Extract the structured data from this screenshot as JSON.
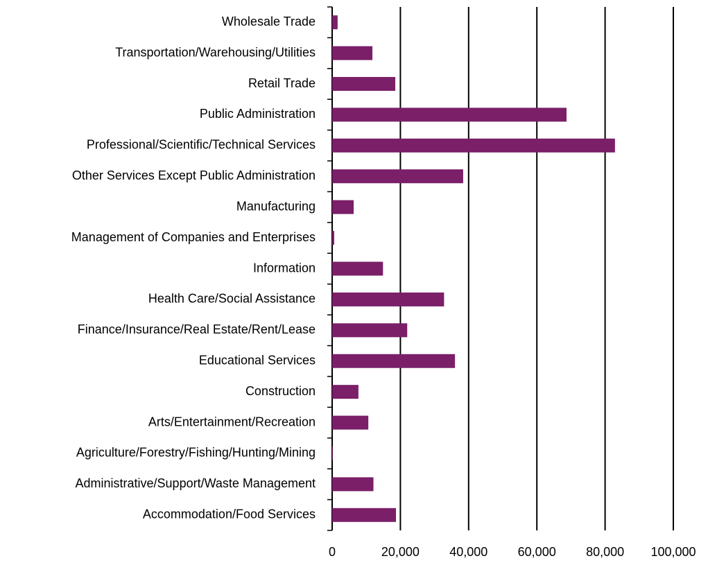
{
  "chart_data": {
    "type": "barh",
    "categories": [
      "Wholesale Trade",
      "Transportation/Warehousing/Utilities",
      "Retail Trade",
      "Public Administration",
      "Professional/Scientific/Technical Services",
      "Other Services Except Public Administration",
      "Manufacturing",
      "Management of Companies and Enterprises",
      "Information",
      "Health Care/Social Assistance",
      "Finance/Insurance/Real Estate/Rent/Lease",
      "Educational Services",
      "Construction",
      "Arts/Entertainment/Recreation",
      "Agriculture/Forestry/Fishing/Hunting/Mining",
      "Administrative/Support/Waste Management",
      "Accommodation/Food Services"
    ],
    "values": [
      1600,
      11800,
      18500,
      68700,
      82900,
      38400,
      6300,
      600,
      14900,
      32800,
      22000,
      36000,
      7700,
      10600,
      200,
      12100,
      18700
    ],
    "color": "#7a1f68",
    "xlim": [
      0,
      100000
    ],
    "xticks": [
      0,
      {
        "value": 20000,
        "label": "20,000"
      },
      {
        "value": 40000,
        "label": "40,000"
      },
      {
        "value": 60000,
        "label": "60,000"
      },
      {
        "value": 80000,
        "label": "80,000"
      },
      {
        "value": 100000,
        "label": "100,000"
      }
    ],
    "grid": true
  }
}
